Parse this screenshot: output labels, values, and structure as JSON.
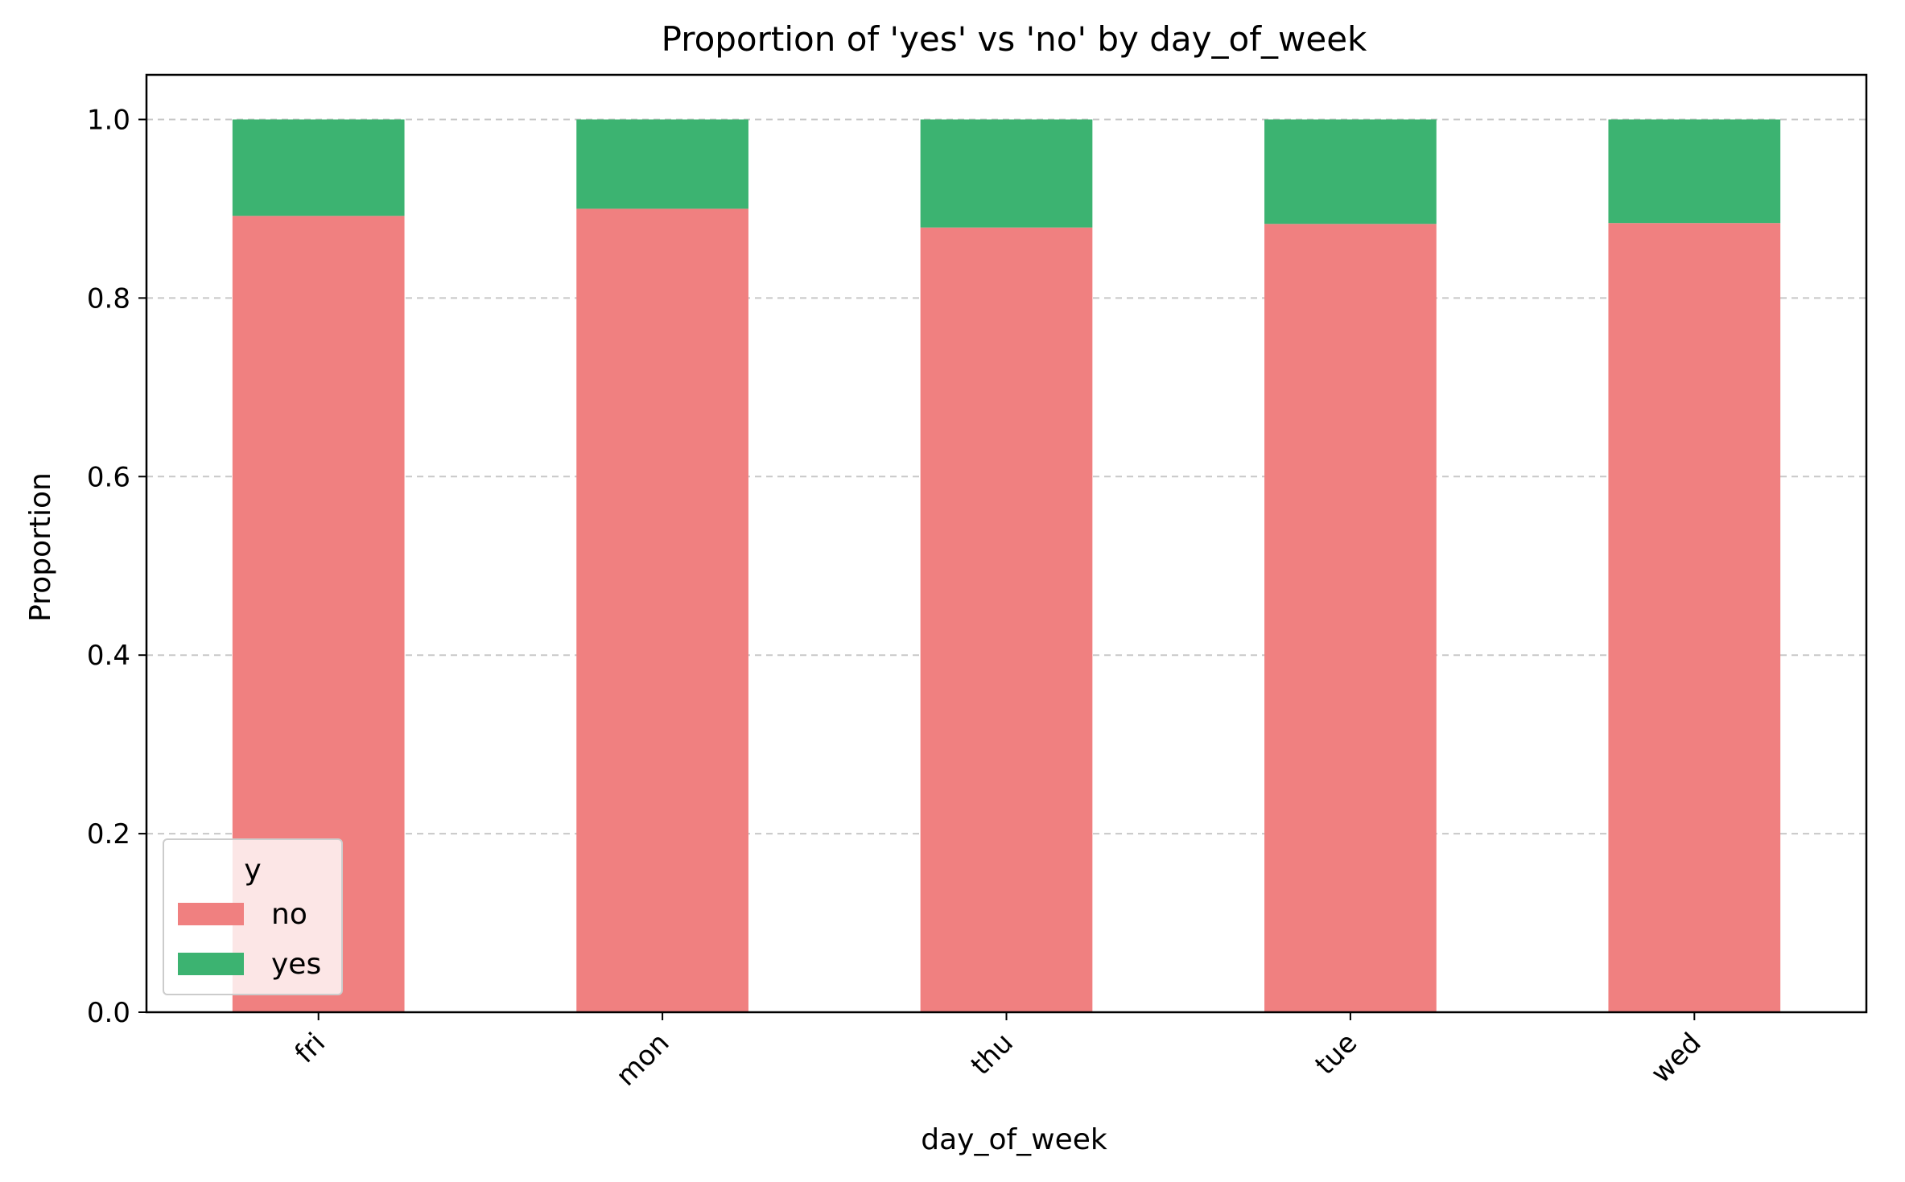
{
  "chart_data": {
    "type": "bar",
    "stacked": true,
    "title": "Proportion of 'yes' vs 'no' by day_of_week",
    "xlabel": "day_of_week",
    "ylabel": "Proportion",
    "categories": [
      "fri",
      "mon",
      "thu",
      "tue",
      "wed"
    ],
    "series": [
      {
        "name": "no",
        "color": "#f08080",
        "values": [
          0.892,
          0.9,
          0.879,
          0.883,
          0.884
        ]
      },
      {
        "name": "yes",
        "color": "#3cb371",
        "values": [
          0.108,
          0.1,
          0.121,
          0.117,
          0.116
        ]
      }
    ],
    "ylim": [
      0.0,
      1.05
    ],
    "yticks": [
      "0.0",
      "0.2",
      "0.4",
      "0.6",
      "0.8",
      "1.0"
    ],
    "grid": "y dashed",
    "legend": {
      "title": "y",
      "placement": "lower-left"
    }
  }
}
